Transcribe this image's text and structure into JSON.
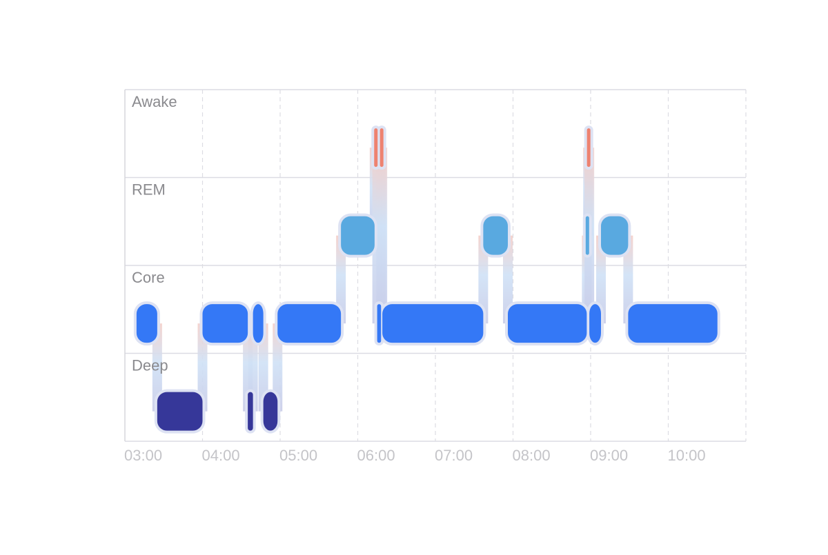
{
  "chart_data": {
    "type": "hypnogram",
    "stages": [
      "Awake",
      "REM",
      "Core",
      "Deep"
    ],
    "x_ticks": [
      "03:00",
      "04:00",
      "05:00",
      "06:00",
      "07:00",
      "08:00",
      "09:00",
      "10:00"
    ],
    "xlim": [
      "03:00",
      "10:00"
    ],
    "grid": true,
    "colors": {
      "Awake": "#ee8270",
      "REM": "#59a9e0",
      "Core": "#3478f6",
      "Deep": "#363799",
      "halo": "#dde2f3",
      "gridline": "#dcdce3",
      "axis": "#d5d5dc"
    },
    "segments": [
      {
        "stage": "Core",
        "start": "03:09",
        "end": "03:25"
      },
      {
        "stage": "Deep",
        "start": "03:25",
        "end": "04:00"
      },
      {
        "stage": "Core",
        "start": "04:00",
        "end": "04:35"
      },
      {
        "stage": "Deep",
        "start": "04:35",
        "end": "04:39"
      },
      {
        "stage": "Core",
        "start": "04:39",
        "end": "04:47"
      },
      {
        "stage": "Deep",
        "start": "04:47",
        "end": "04:58"
      },
      {
        "stage": "Core",
        "start": "04:58",
        "end": "05:47"
      },
      {
        "stage": "REM",
        "start": "05:47",
        "end": "06:13"
      },
      {
        "stage": "Awake",
        "start": "06:13",
        "end": "06:15"
      },
      {
        "stage": "Core",
        "start": "06:15",
        "end": "06:18"
      },
      {
        "stage": "Awake",
        "start": "06:18",
        "end": "06:19"
      },
      {
        "stage": "Core",
        "start": "06:19",
        "end": "07:37"
      },
      {
        "stage": "REM",
        "start": "07:37",
        "end": "07:56"
      },
      {
        "stage": "Core",
        "start": "07:56",
        "end": "08:57"
      },
      {
        "stage": "REM",
        "start": "08:57",
        "end": "08:58"
      },
      {
        "stage": "Awake",
        "start": "08:58",
        "end": "08:59"
      },
      {
        "stage": "Core",
        "start": "08:59",
        "end": "09:08"
      },
      {
        "stage": "REM",
        "start": "09:08",
        "end": "09:29"
      },
      {
        "stage": "Core",
        "start": "09:29",
        "end": "10:38"
      }
    ]
  }
}
